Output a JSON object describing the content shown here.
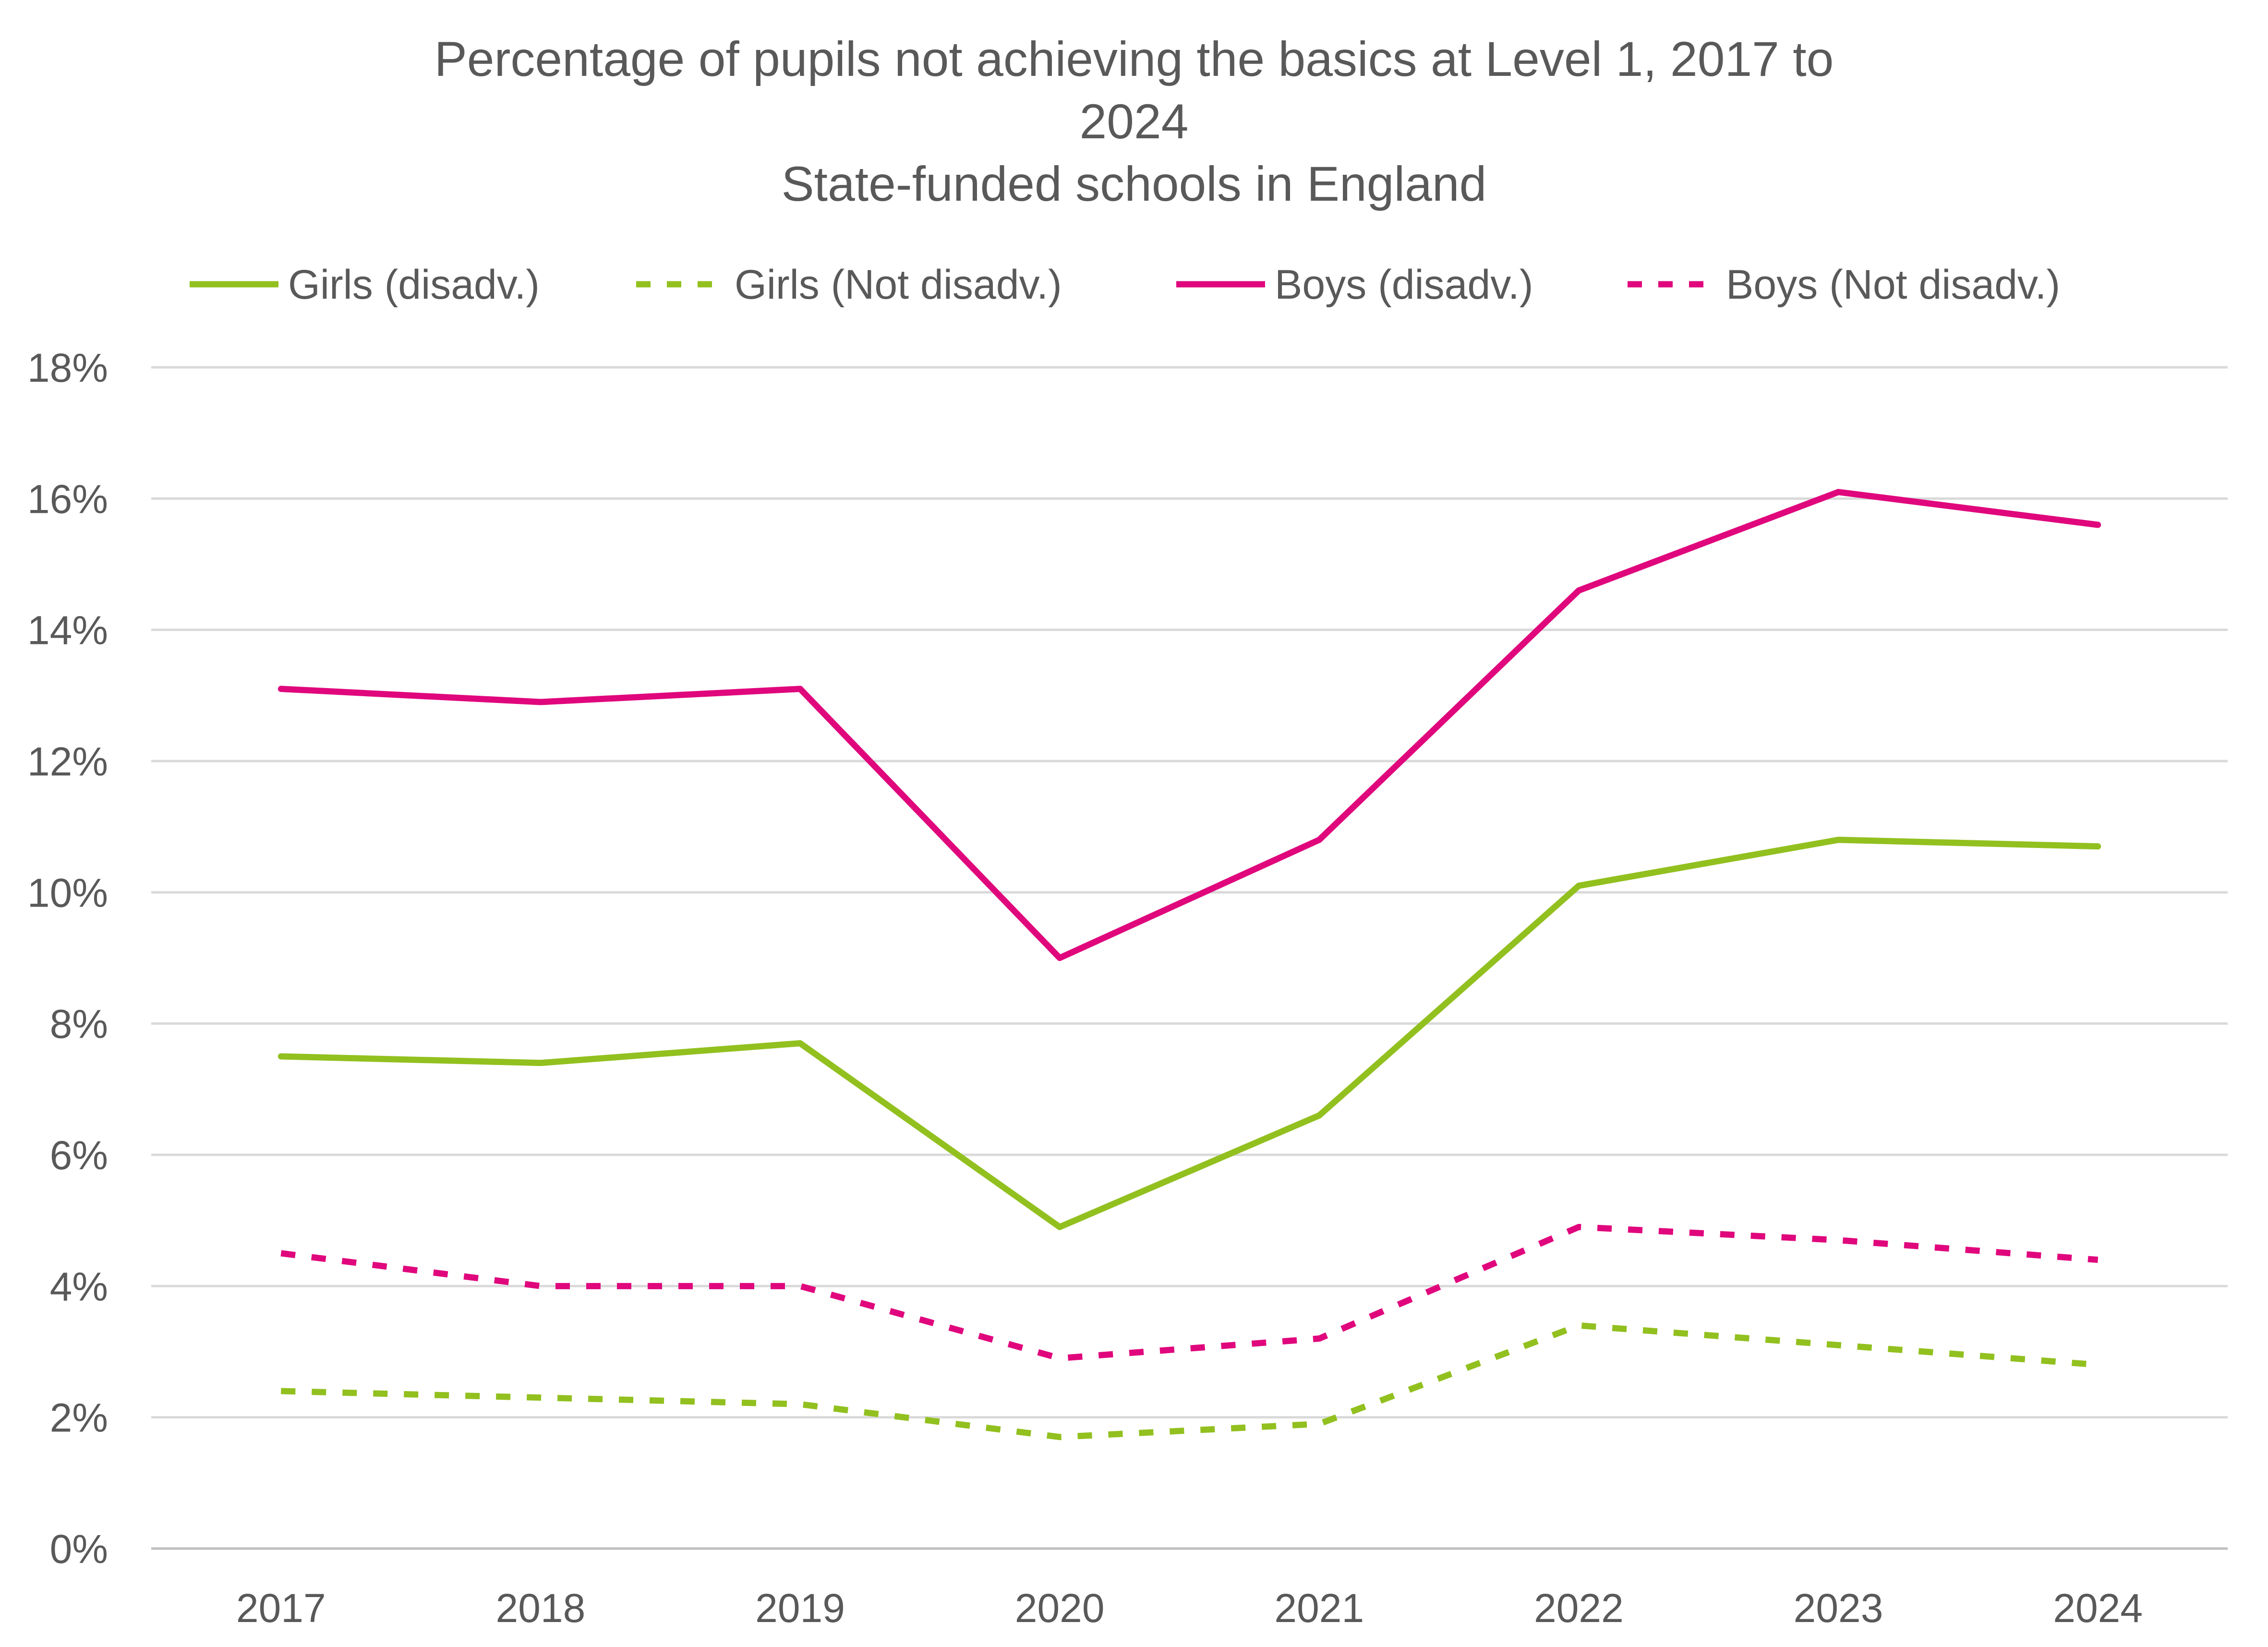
{
  "chart_data": {
    "type": "line",
    "title": [
      "Percentage of pupils not achieving the basics at Level 1, 2017 to",
      "2024",
      "State-funded schools in England"
    ],
    "categories": [
      "2017",
      "2018",
      "2019",
      "2020",
      "2021",
      "2022",
      "2023",
      "2024"
    ],
    "series": [
      {
        "name": "Girls (disadv.)",
        "color": "#92C01F",
        "dash": "solid",
        "values": [
          7.5,
          7.4,
          7.7,
          4.9,
          6.6,
          10.1,
          10.8,
          10.7
        ]
      },
      {
        "name": "Girls (Not disadv.)",
        "color": "#92C01F",
        "dash": "dashed",
        "values": [
          2.4,
          2.3,
          2.2,
          1.7,
          1.9,
          3.4,
          3.1,
          2.8
        ]
      },
      {
        "name": "Boys (disadv.)",
        "color": "#E0077D",
        "dash": "solid",
        "values": [
          13.1,
          12.9,
          13.1,
          9.0,
          10.8,
          14.6,
          16.1,
          15.6
        ]
      },
      {
        "name": "Boys (Not disadv.)",
        "color": "#E0077D",
        "dash": "dashed",
        "values": [
          4.5,
          4.0,
          4.0,
          2.9,
          3.2,
          4.9,
          4.7,
          4.4
        ]
      }
    ],
    "yticks": [
      "0%",
      "2%",
      "4%",
      "6%",
      "8%",
      "10%",
      "12%",
      "14%",
      "16%",
      "18%"
    ],
    "ylim": [
      0,
      18
    ],
    "xlabel": "",
    "ylabel": "",
    "grid": true,
    "legend_position": "top"
  }
}
